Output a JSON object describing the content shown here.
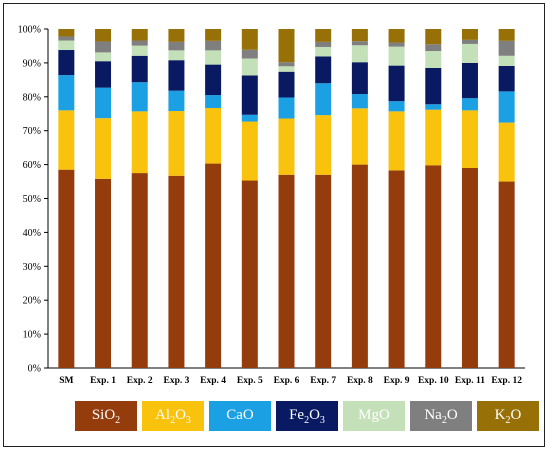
{
  "chart_data": {
    "type": "bar",
    "stacked": true,
    "categories": [
      "SM",
      "Exp. 1",
      "Exp. 2",
      "Exp. 3",
      "Exp. 4",
      "Exp. 5",
      "Exp. 6",
      "Exp. 7",
      "Exp. 8",
      "Exp. 9",
      "Exp. 10",
      "Exp. 11",
      "Exp. 12"
    ],
    "ylim": [
      0,
      100
    ],
    "yticks": [
      0,
      10,
      20,
      30,
      40,
      50,
      60,
      70,
      80,
      90,
      100
    ],
    "ytick_labels": [
      "0%",
      "10%",
      "20%",
      "30%",
      "40%",
      "50%",
      "60%",
      "70%",
      "80%",
      "90%",
      "100%"
    ],
    "grid": false,
    "legend_position": "bottom",
    "series": [
      {
        "name": "SiO2",
        "color": "#953C0D",
        "values": [
          58.5,
          55.8,
          57.5,
          56.7,
          60.3,
          55.3,
          57.0,
          57.0,
          60.0,
          58.3,
          59.8,
          59.0,
          55.0
        ]
      },
      {
        "name": "Al2O3",
        "color": "#F9C20C",
        "values": [
          17.5,
          17.9,
          18.2,
          19.1,
          16.4,
          17.4,
          16.6,
          17.6,
          16.6,
          17.4,
          16.4,
          17.0,
          17.4
        ]
      },
      {
        "name": "CaO",
        "color": "#1BA0E4",
        "values": [
          10.4,
          9.0,
          8.6,
          6.0,
          3.8,
          2.0,
          6.2,
          9.4,
          4.2,
          3.0,
          1.6,
          3.6,
          9.2
        ]
      },
      {
        "name": "Fe2O3",
        "color": "#0A1A62",
        "values": [
          7.4,
          7.8,
          7.8,
          9.0,
          9.0,
          11.6,
          7.6,
          7.9,
          9.4,
          10.5,
          10.7,
          10.4,
          7.5
        ]
      },
      {
        "name": "MgO",
        "color": "#C3E0B9",
        "values": [
          2.8,
          2.6,
          3.0,
          2.9,
          4.2,
          5.0,
          1.6,
          2.8,
          5.0,
          5.6,
          5.0,
          5.6,
          3.0
        ]
      },
      {
        "name": "Na2O",
        "color": "#7F7F7F",
        "values": [
          1.2,
          3.2,
          1.5,
          2.5,
          2.8,
          2.6,
          1.2,
          1.5,
          1.2,
          1.2,
          2.0,
          1.2,
          4.4
        ]
      },
      {
        "name": "K2O",
        "color": "#977008",
        "values": [
          2.2,
          3.7,
          3.4,
          3.8,
          3.5,
          6.1,
          9.8,
          3.8,
          3.6,
          4.0,
          4.5,
          3.2,
          3.5
        ]
      }
    ]
  },
  "legend": [
    {
      "base": "SiO",
      "sub": "2",
      "tail": ""
    },
    {
      "base": "Al",
      "sub": "2",
      "tail": "O",
      "sub2": "3"
    },
    {
      "base": "CaO",
      "sub": "",
      "tail": ""
    },
    {
      "base": "Fe",
      "sub": "2",
      "tail": "O",
      "sub2": "3"
    },
    {
      "base": "MgO",
      "sub": "",
      "tail": ""
    },
    {
      "base": "Na",
      "sub": "2",
      "tail": "O"
    },
    {
      "base": "K",
      "sub": "2",
      "tail": "O"
    }
  ]
}
